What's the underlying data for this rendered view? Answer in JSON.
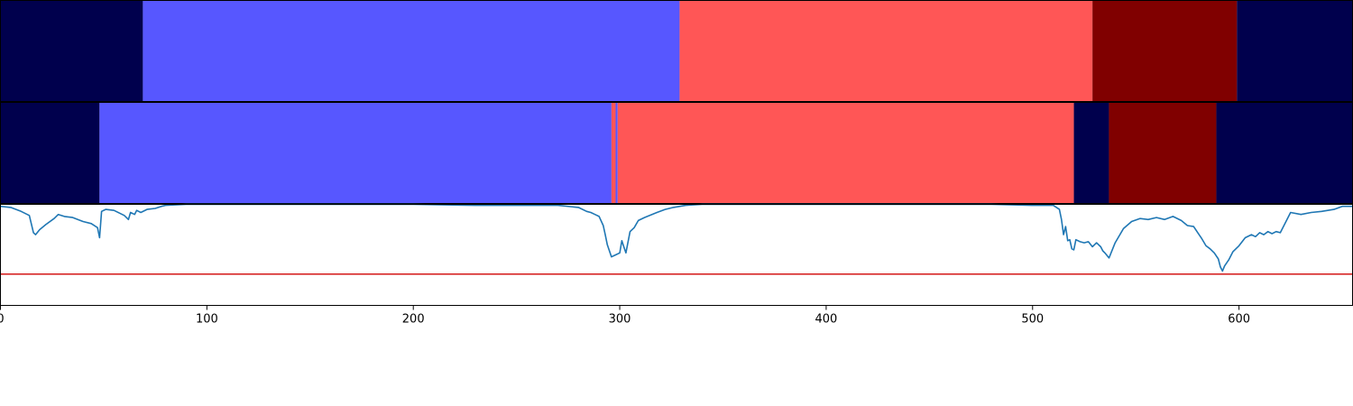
{
  "chart_data": [
    {
      "type": "segment-strip",
      "xlim": [
        0,
        655
      ],
      "segments": [
        {
          "start": 0,
          "end": 69,
          "label_index": 0
        },
        {
          "start": 69,
          "end": 329,
          "label_index": 1
        },
        {
          "start": 329,
          "end": 529,
          "label_index": 2
        },
        {
          "start": 529,
          "end": 599,
          "label_index": 3
        },
        {
          "start": 599,
          "end": 655,
          "label_index": 0
        }
      ]
    },
    {
      "type": "segment-strip",
      "xlim": [
        0,
        655
      ],
      "segments": [
        {
          "start": 0,
          "end": 48,
          "label_index": 0
        },
        {
          "start": 48,
          "end": 296,
          "label_index": 1
        },
        {
          "start": 296,
          "end": 298,
          "label_index": 2
        },
        {
          "start": 298,
          "end": 299,
          "label_index": 1
        },
        {
          "start": 299,
          "end": 520,
          "label_index": 2
        },
        {
          "start": 520,
          "end": 537,
          "label_index": 0
        },
        {
          "start": 537,
          "end": 589,
          "label_index": 3
        },
        {
          "start": 589,
          "end": 655,
          "label_index": 0
        }
      ]
    },
    {
      "type": "line",
      "xlim": [
        0,
        655
      ],
      "ylim": [
        0,
        1
      ],
      "xticks": [
        "0",
        "100",
        "200",
        "300",
        "400",
        "500",
        "600"
      ],
      "threshold": 0.31,
      "series": [
        {
          "color": "#1f77b4",
          "x": [
            0,
            5,
            10,
            14,
            16,
            17,
            19,
            22,
            26,
            28,
            31,
            35,
            40,
            44,
            47,
            48,
            49,
            51,
            55,
            60,
            62,
            63,
            65,
            66,
            68,
            71,
            75,
            78,
            80,
            90,
            120,
            160,
            200,
            230,
            250,
            270,
            280,
            284,
            286,
            288,
            290,
            292,
            293,
            294,
            296,
            298,
            300,
            301,
            302,
            303,
            305,
            307,
            309,
            312,
            318,
            322,
            326,
            332,
            340,
            360,
            380,
            400,
            440,
            480,
            500,
            510,
            513,
            514,
            515,
            516,
            517,
            518,
            519,
            520,
            521,
            523,
            525,
            527,
            529,
            531,
            533,
            534,
            535,
            537,
            540,
            544,
            548,
            552,
            556,
            560,
            564,
            568,
            572,
            575,
            578,
            580,
            582,
            584,
            586,
            588,
            590,
            591,
            592,
            593,
            595,
            597,
            600,
            603,
            606,
            608,
            610,
            612,
            614,
            616,
            618,
            620,
            622,
            625,
            630,
            635,
            640,
            646,
            650,
            655
          ],
          "y": [
            0.98,
            0.97,
            0.93,
            0.89,
            0.72,
            0.7,
            0.75,
            0.8,
            0.86,
            0.9,
            0.88,
            0.87,
            0.83,
            0.81,
            0.77,
            0.67,
            0.93,
            0.95,
            0.94,
            0.89,
            0.85,
            0.92,
            0.9,
            0.94,
            0.92,
            0.95,
            0.96,
            0.98,
            0.99,
            1.0,
            1.0,
            1.0,
            1.0,
            0.99,
            0.99,
            0.99,
            0.97,
            0.93,
            0.92,
            0.9,
            0.88,
            0.79,
            0.7,
            0.6,
            0.48,
            0.5,
            0.52,
            0.64,
            0.58,
            0.52,
            0.73,
            0.77,
            0.84,
            0.87,
            0.92,
            0.95,
            0.97,
            0.99,
            1.0,
            1.0,
            1.0,
            1.0,
            1.0,
            1.0,
            0.99,
            0.99,
            0.95,
            0.85,
            0.7,
            0.78,
            0.64,
            0.65,
            0.56,
            0.55,
            0.65,
            0.63,
            0.62,
            0.63,
            0.58,
            0.62,
            0.58,
            0.54,
            0.52,
            0.47,
            0.62,
            0.76,
            0.83,
            0.86,
            0.85,
            0.87,
            0.85,
            0.88,
            0.84,
            0.79,
            0.78,
            0.72,
            0.66,
            0.59,
            0.56,
            0.52,
            0.46,
            0.38,
            0.34,
            0.39,
            0.45,
            0.53,
            0.59,
            0.67,
            0.7,
            0.68,
            0.72,
            0.7,
            0.73,
            0.71,
            0.73,
            0.72,
            0.8,
            0.92,
            0.9,
            0.92,
            0.93,
            0.95,
            0.98,
            0.98
          ]
        }
      ]
    }
  ],
  "colors": {
    "classes": [
      "#00004d",
      "#5757ff",
      "#ff5656",
      "#800000"
    ],
    "threshold_line": "#d62728",
    "axes": "#000000"
  }
}
